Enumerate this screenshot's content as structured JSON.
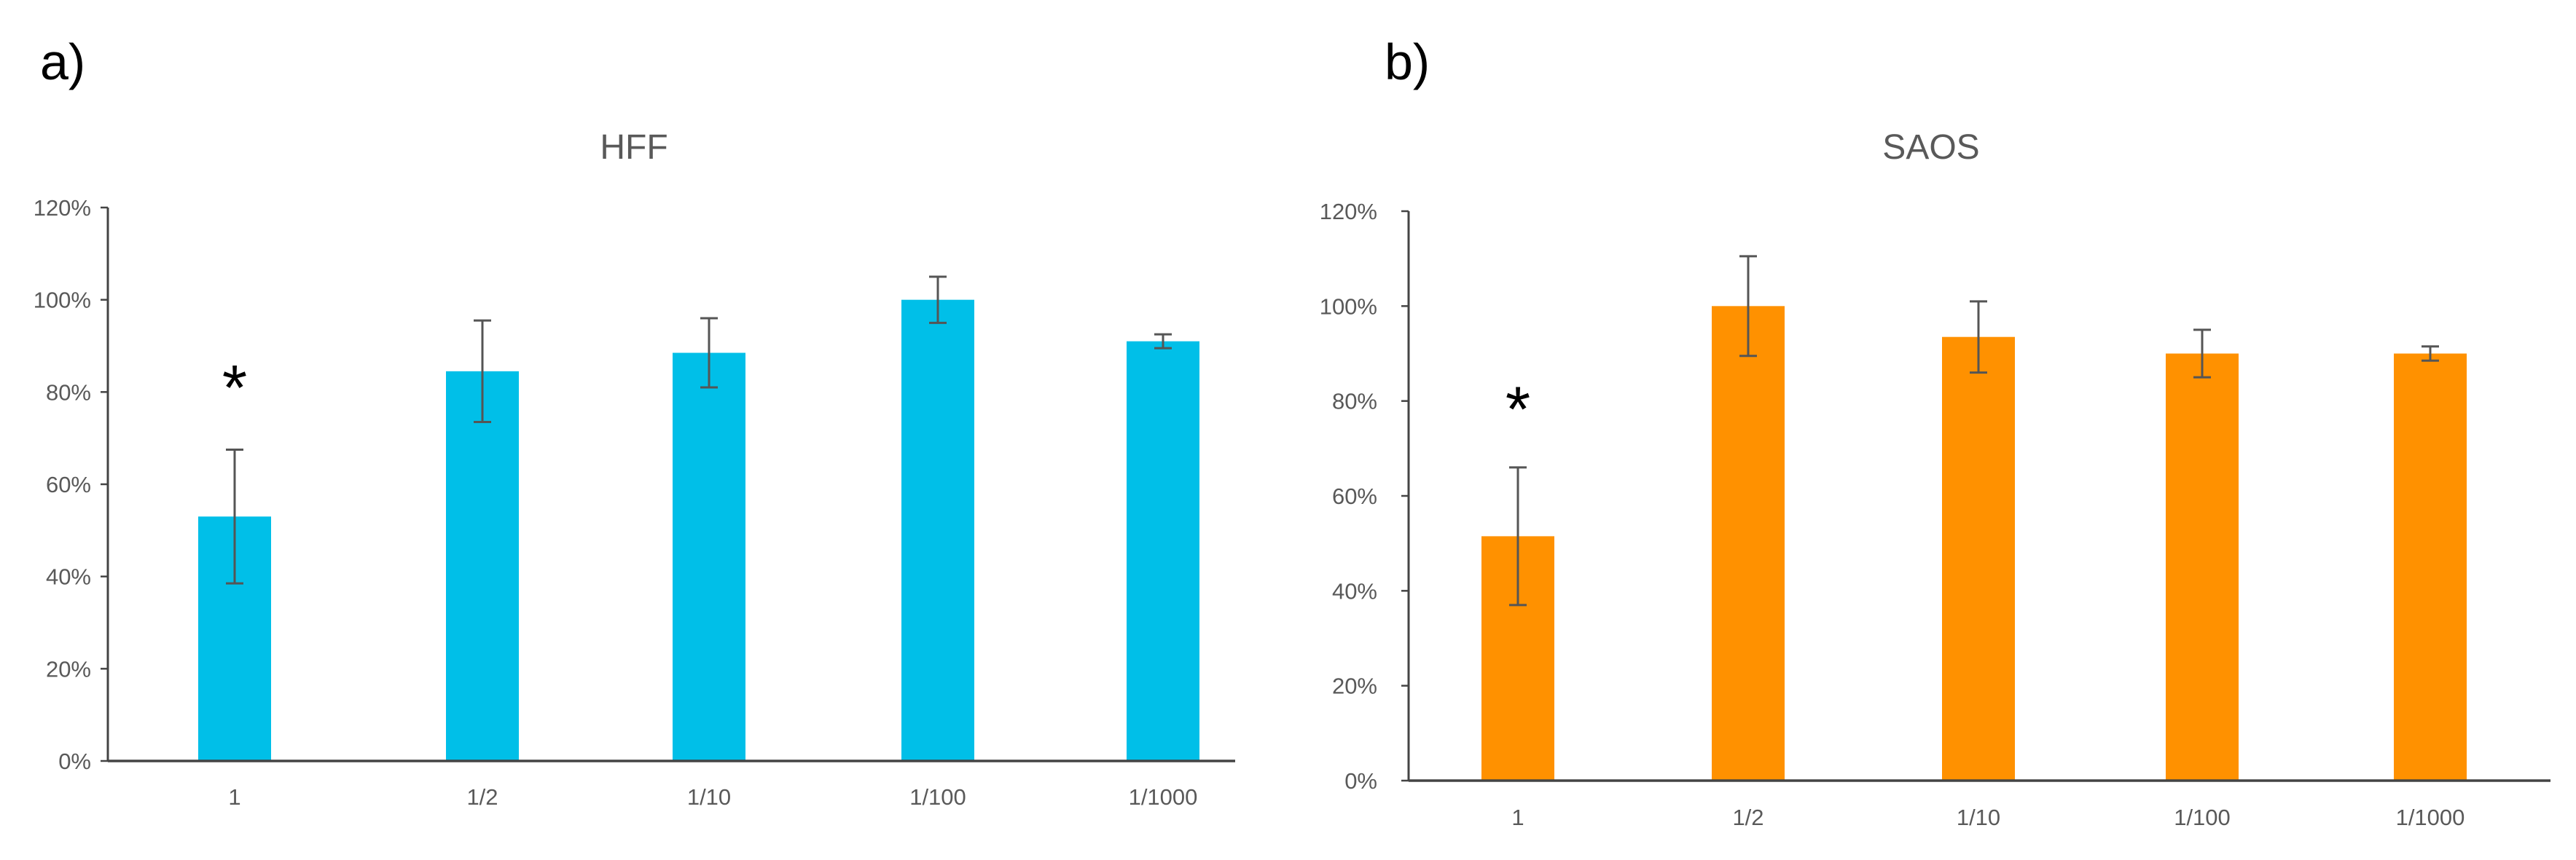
{
  "panels": [
    {
      "label": "a)"
    },
    {
      "label": "b)"
    }
  ],
  "chart_data": [
    {
      "type": "bar",
      "title": "HFF",
      "categories": [
        "1",
        "1/2",
        "1/10",
        "1/100",
        "1/1000"
      ],
      "values": [
        53,
        84.5,
        88.5,
        100,
        91
      ],
      "errors": [
        14.5,
        11,
        7.5,
        5,
        1.5
      ],
      "ylim": [
        0,
        120
      ],
      "yticks": [
        "0%",
        "20%",
        "40%",
        "60%",
        "80%",
        "100%",
        "120%"
      ],
      "ytick_values": [
        0,
        20,
        40,
        60,
        80,
        100,
        120
      ],
      "annotations": [
        {
          "text": "*",
          "category": "1"
        }
      ],
      "color": "#00BFE8",
      "xlabel": "",
      "ylabel": ""
    },
    {
      "type": "bar",
      "title": "SAOS",
      "categories": [
        "1",
        "1/2",
        "1/10",
        "1/100",
        "1/1000"
      ],
      "values": [
        51.5,
        100,
        93.5,
        90,
        90
      ],
      "errors": [
        14.5,
        10.5,
        7.5,
        5,
        1.5
      ],
      "ylim": [
        0,
        120
      ],
      "yticks": [
        "0%",
        "20%",
        "40%",
        "60%",
        "80%",
        "100%",
        "120%"
      ],
      "ytick_values": [
        0,
        20,
        40,
        60,
        80,
        100,
        120
      ],
      "annotations": [
        {
          "text": "*",
          "category": "1"
        }
      ],
      "color": "#FF9100",
      "xlabel": "",
      "ylabel": ""
    }
  ]
}
